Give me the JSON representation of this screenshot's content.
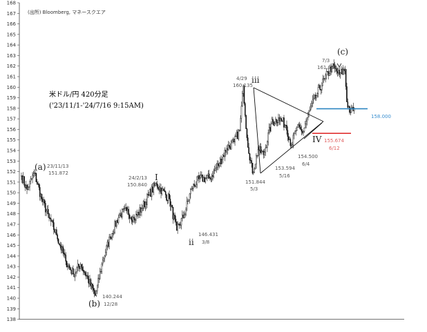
{
  "chart_data": {
    "type": "candlestick",
    "source": "(出所) Bloomberg, マネースクエア",
    "title": "米ドル/円 420分足",
    "subtitle": "('23/11/1-'24/7/16 9:15AM)",
    "yticks": [
      138,
      139,
      140,
      141,
      142,
      143,
      144,
      145,
      146,
      147,
      148,
      149,
      150,
      151,
      152,
      153,
      154,
      155,
      156,
      157,
      158,
      159,
      160,
      161,
      162,
      163,
      164,
      165,
      166,
      167,
      168
    ],
    "ylim": [
      138,
      168
    ],
    "anchors": [
      {
        "i": 0,
        "v": 151.6
      },
      {
        "i": 6,
        "v": 150.3
      },
      {
        "i": 14,
        "v": 151.87
      },
      {
        "i": 22,
        "v": 149.4
      },
      {
        "i": 30,
        "v": 147.6
      },
      {
        "i": 38,
        "v": 146.0
      },
      {
        "i": 48,
        "v": 143.5
      },
      {
        "i": 56,
        "v": 142.3
      },
      {
        "i": 64,
        "v": 143.2
      },
      {
        "i": 72,
        "v": 141.8
      },
      {
        "i": 80,
        "v": 140.24
      },
      {
        "i": 88,
        "v": 143.6
      },
      {
        "i": 96,
        "v": 145.8
      },
      {
        "i": 106,
        "v": 147.9
      },
      {
        "i": 114,
        "v": 148.3
      },
      {
        "i": 122,
        "v": 147.5
      },
      {
        "i": 130,
        "v": 148.5
      },
      {
        "i": 138,
        "v": 149.8
      },
      {
        "i": 146,
        "v": 150.84
      },
      {
        "i": 152,
        "v": 150.2
      },
      {
        "i": 160,
        "v": 149.4
      },
      {
        "i": 168,
        "v": 146.43
      },
      {
        "i": 176,
        "v": 147.9
      },
      {
        "i": 184,
        "v": 150.4
      },
      {
        "i": 192,
        "v": 151.3
      },
      {
        "i": 204,
        "v": 151.4
      },
      {
        "i": 214,
        "v": 152.8
      },
      {
        "i": 222,
        "v": 154.2
      },
      {
        "i": 230,
        "v": 154.8
      },
      {
        "i": 236,
        "v": 155.9
      },
      {
        "i": 240,
        "v": 160.1
      },
      {
        "i": 244,
        "v": 155.2
      },
      {
        "i": 250,
        "v": 151.84
      },
      {
        "i": 256,
        "v": 154.1
      },
      {
        "i": 262,
        "v": 153.59
      },
      {
        "i": 270,
        "v": 156.5
      },
      {
        "i": 278,
        "v": 157.1
      },
      {
        "i": 286,
        "v": 156.4
      },
      {
        "i": 292,
        "v": 154.5
      },
      {
        "i": 298,
        "v": 156.2
      },
      {
        "i": 304,
        "v": 155.67
      },
      {
        "i": 312,
        "v": 157.9
      },
      {
        "i": 320,
        "v": 159.4
      },
      {
        "i": 328,
        "v": 160.8
      },
      {
        "i": 336,
        "v": 161.94
      },
      {
        "i": 344,
        "v": 161.2
      },
      {
        "i": 350,
        "v": 161.7
      },
      {
        "i": 352,
        "v": 158.6
      },
      {
        "i": 356,
        "v": 157.6
      },
      {
        "i": 360,
        "v": 158.0
      }
    ],
    "annotations": [
      {
        "wave": "(a)",
        "date": "23/11/13",
        "price": "151.872"
      },
      {
        "wave": "(b)",
        "date": "12/28",
        "price": "140.244"
      },
      {
        "wave": "I",
        "date": "24/2/13",
        "price": "150.840"
      },
      {
        "wave": "ii",
        "date": "3/8",
        "price": "146.431"
      },
      {
        "wave": "iii",
        "date": "4/29",
        "price": "160.135"
      },
      {
        "wave": "",
        "date": "5/3",
        "price": "151.844"
      },
      {
        "wave": "",
        "date": "5/16",
        "price": "153.594"
      },
      {
        "wave": "",
        "date": "6/4",
        "price": "154.500"
      },
      {
        "wave": "IV",
        "date": "6/12",
        "price": "155.674"
      },
      {
        "wave": "(c)",
        "date": "7/3",
        "price": "161.938"
      }
    ],
    "hlines": [
      {
        "value": 158.0,
        "label": "158.000",
        "color": "#2e86c1"
      },
      {
        "value": 155.674,
        "label": "155.674",
        "color": "#e03030"
      }
    ],
    "colors": {
      "candle": "#111111",
      "axis": "#444444",
      "blue": "#2e86c1",
      "red": "#e03030",
      "label_red": "#e06060",
      "label_blue": "#3a8fd0"
    }
  }
}
